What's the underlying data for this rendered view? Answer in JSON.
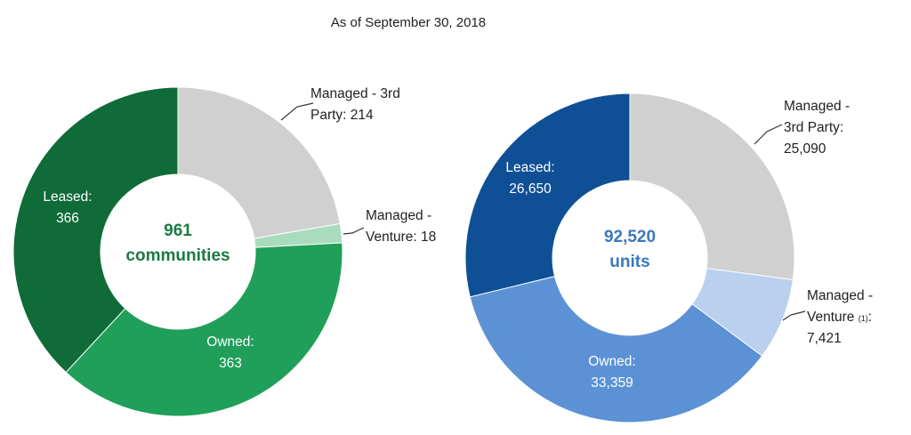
{
  "page": {
    "title": "As of September 30, 2018"
  },
  "chart_data": [
    {
      "type": "pie",
      "title": "",
      "center": {
        "value": "961",
        "unit": "communities"
      },
      "center_color": "#1b7a44",
      "slices": [
        {
          "name": "Managed - 3rd Party",
          "value": 214,
          "color": "#d0d0d0",
          "label_lines": [
            "Managed - 3rd",
            "Party: 214"
          ],
          "label_inside": false
        },
        {
          "name": "Managed - Venture",
          "value": 18,
          "color": "#a9dcbd",
          "label_lines": [
            "Managed -",
            "Venture: 18"
          ],
          "label_inside": false
        },
        {
          "name": "Owned",
          "value": 363,
          "color": "#1f9f5a",
          "label_lines": [
            "Owned:",
            "363"
          ],
          "label_inside": true
        },
        {
          "name": "Leased",
          "value": 366,
          "color": "#0f6b38",
          "label_lines": [
            "Leased:",
            "366"
          ],
          "label_inside": true
        }
      ]
    },
    {
      "type": "pie",
      "title": "",
      "center": {
        "value": "92,520",
        "unit": "units"
      },
      "center_color": "#3a78bd",
      "slices": [
        {
          "name": "Managed - 3rd Party",
          "value": 25090,
          "color": "#d0d0d0",
          "label_lines": [
            "Managed -",
            "3rd Party:",
            "25,090"
          ],
          "label_inside": false
        },
        {
          "name": "Managed - Venture",
          "value": 7421,
          "color": "#b9d1ee",
          "label_lines": [
            "Managed -",
            "Venture (1):",
            "7,421"
          ],
          "label_inside": false
        },
        {
          "name": "Owned",
          "value": 33359,
          "color": "#5c92d5",
          "label_lines": [
            "Owned:",
            "33,359"
          ],
          "label_inside": true
        },
        {
          "name": "Leased",
          "value": 26650,
          "color": "#0f4f96",
          "label_lines": [
            "Leased:",
            "26,650"
          ],
          "label_inside": true
        }
      ]
    }
  ]
}
